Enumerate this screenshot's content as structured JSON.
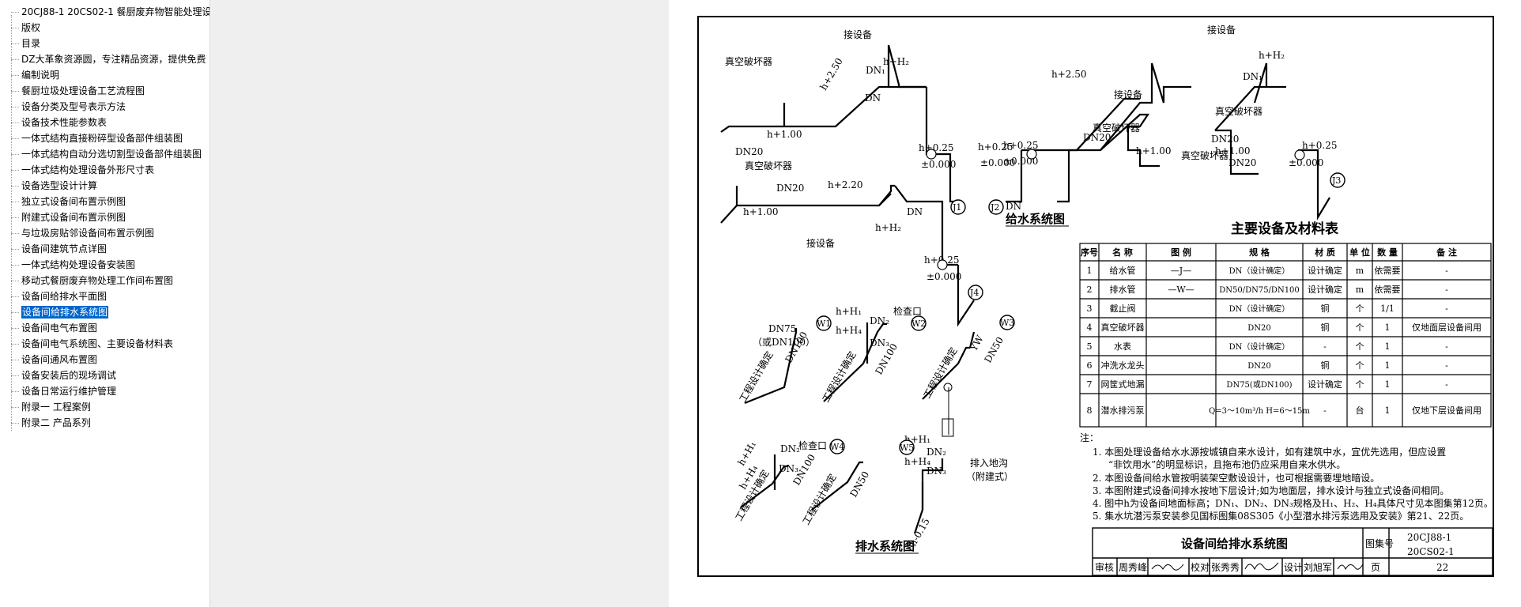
{
  "sidebar": {
    "items": [
      {
        "label": "20CJ88-1 20CS02-1 餐厨废弃物智能处理设"
      },
      {
        "label": "版权"
      },
      {
        "label": "目录"
      },
      {
        "label": "DZ大革象资源圆，专注精品资源，提供免费"
      },
      {
        "label": "编制说明"
      },
      {
        "label": "餐厨垃圾处理设备工艺流程图"
      },
      {
        "label": "设备分类及型号表示方法"
      },
      {
        "label": "设备技术性能参数表"
      },
      {
        "label": "一体式结构直接粉碎型设备部件组装图"
      },
      {
        "label": "一体式结构自动分选切割型设备部件组装图"
      },
      {
        "label": "一体式结构处理设备外形尺寸表"
      },
      {
        "label": "设备选型设计计算"
      },
      {
        "label": "独立式设备间布置示例图"
      },
      {
        "label": "附建式设备间布置示例图"
      },
      {
        "label": "与垃圾房贴邻设备间布置示例图"
      },
      {
        "label": "设备间建筑节点详图"
      },
      {
        "label": "一体式结构处理设备安装图"
      },
      {
        "label": "移动式餐厨废弃物处理工作间布置图"
      },
      {
        "label": "设备间给排水平面图"
      },
      {
        "label": "设备间给排水系统图"
      },
      {
        "label": "设备间电气布置图"
      },
      {
        "label": "设备间电气系统图、主要设备材料表"
      },
      {
        "label": "设备间通风布置图"
      },
      {
        "label": "设备安装后的现场调试"
      },
      {
        "label": "设备日常运行维护管理"
      },
      {
        "label": "附录一 工程案例"
      },
      {
        "label": "附录二 产品系列"
      }
    ],
    "selected_index": 19
  },
  "drawing": {
    "water_title": "给水系统图",
    "drain_title": "排水系统图",
    "table_title": "主要设备及材料表",
    "table_headers": [
      "序号",
      "名 称",
      "图 例",
      "规 格",
      "材 质",
      "单 位",
      "数 量",
      "备 注"
    ],
    "table_rows": [
      [
        "1",
        "给水管",
        "—J—",
        "DN（设计确定）",
        "设计确定",
        "m",
        "依需要",
        "-"
      ],
      [
        "2",
        "排水管",
        "—W—",
        "DN50/DN75/DN100",
        "设计确定",
        "m",
        "依需要",
        "-"
      ],
      [
        "3",
        "截止阀",
        "",
        "DN（设计确定）",
        "铜",
        "个",
        "1/1",
        "-"
      ],
      [
        "4",
        "真空破坏器",
        "",
        "DN20",
        "铜",
        "个",
        "1",
        "仅地面层设备间用"
      ],
      [
        "5",
        "水表",
        "",
        "DN（设计确定）",
        "-",
        "个",
        "1",
        "-"
      ],
      [
        "6",
        "冲洗水龙头",
        "",
        "DN20",
        "铜",
        "个",
        "1",
        "-"
      ],
      [
        "7",
        "网筐式地漏",
        "",
        "DN75(或DN100)",
        "设计确定",
        "个",
        "1",
        "-"
      ],
      [
        "8",
        "潜水排污泵",
        "",
        "Q=3～10m³/h H=6～15m",
        "-",
        "台",
        "1",
        "仅地下层设备间用"
      ]
    ],
    "notes_label": "注：",
    "notes": [
      "1. 本图处理设备给水水源按城镇自来水设计，如有建筑中水，宜优先选用，但应设置",
      "“非饮用水”的明显标识，且拖布池仍应采用自来水供水。",
      "2. 本图设备间给水管按明装架空敷设设计，也可根据需要埋地暗设。",
      "3. 本图附建式设备间排水按地下层设计;如为地面层，排水设计与独立式设备间相同。",
      "4. 图中h为设备间地面标高；DN₁、DN₂、DN₃规格及H₁、H₂、H₄具体尺寸见本图集第12页。",
      "5. 集水坑潜污泵安装参见国标图集08S305《小型潜水排污泵选用及安装》第21、22页。"
    ],
    "title_block": {
      "title": "设备间给排水系统图",
      "atlas_label": "图集号",
      "atlas_no_1": "20CJ88-1",
      "atlas_no_2": "20CS02-1",
      "review_label": "审核",
      "reviewer": "周秀峰",
      "check_label": "校对",
      "checker": "张秀秀",
      "design_label": "设计",
      "designer": "刘旭军",
      "page_label": "页",
      "page_no": "22"
    },
    "water_labels": {
      "vac_breaker": "真空破坏器",
      "connect_equip": "接设备",
      "h250": "h+2.50",
      "h100": "h+1.00",
      "h220": "h+2.20",
      "h025": "h+0.25",
      "zero": "±0.000",
      "hH2": "h+H₂",
      "dn20": "DN20",
      "dn": "DN",
      "dn1": "DN₁",
      "j1": "J1",
      "j2": "J2",
      "j3": "J3",
      "j4": "J4"
    },
    "drain_labels": {
      "dn75": "DN75",
      "dn75alt": "（或DN100）",
      "dn100": "DN100",
      "dn50": "DN50",
      "hH1": "h+H₁",
      "hH4": "h+H₄",
      "inspect": "检查口",
      "dn2": "DN₂",
      "dn3": "DN₃",
      "eng": "工程设计确定",
      "yw": "YW",
      "to_ditch": "排入地沟",
      "annex": "（附建式）",
      "h015": "h-0.15",
      "w1": "W1",
      "w2": "W2",
      "w3": "W3",
      "w4": "W4",
      "w5": "W5"
    }
  }
}
